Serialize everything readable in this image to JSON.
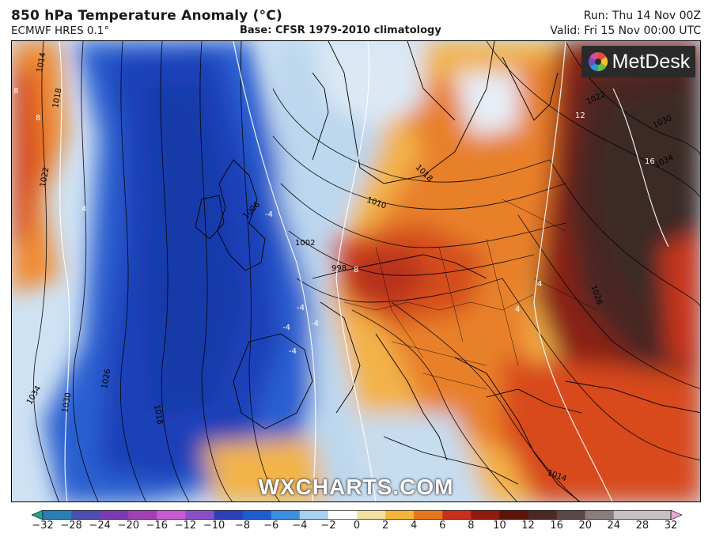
{
  "header": {
    "title": "850 hPa Temperature Anomaly (°C)",
    "model": "ECMWF HRES 0.1°",
    "base": "Base: CFSR 1979-2010 climatology",
    "run": "Run: Thu 14 Nov 00Z",
    "valid": "Valid: Fri 15 Nov 00:00 UTC"
  },
  "logo": {
    "text": "MetDesk"
  },
  "watermark": "WXCHARTS.COM",
  "map": {
    "pressure_labels": [
      "1014",
      "1018",
      "1022",
      "1026",
      "1030",
      "1034",
      "1002",
      "1006",
      "1010",
      "1018",
      "1022",
      "1030",
      "1034",
      "1026",
      "998",
      "1014",
      "1018"
    ],
    "anomaly_labels": [
      "8",
      "8",
      "4",
      "-4",
      "-4",
      "-4",
      "-4",
      "-4",
      "12",
      "16",
      "4",
      "4",
      "8"
    ]
  },
  "colorbar": {
    "ticks": [
      "−32",
      "−28",
      "−24",
      "−20",
      "−16",
      "−12",
      "−10",
      "−8",
      "−6",
      "−4",
      "−2",
      "0",
      "2",
      "4",
      "6",
      "8",
      "10",
      "12",
      "16",
      "20",
      "24",
      "28",
      "32"
    ],
    "colors": [
      "#1fa58f",
      "#2a7fb6",
      "#4d4fb0",
      "#7a3bb0",
      "#a23fb6",
      "#c85bd0",
      "#8a4fc7",
      "#2d3fb6",
      "#1e5ccf",
      "#3a8fe0",
      "#a8d0ef",
      "#ffffff",
      "#f2e0a0",
      "#f5b43a",
      "#e6761c",
      "#c8301a",
      "#8e1a10",
      "#5e1408",
      "#4a2a22",
      "#5a4845",
      "#8a7e7c",
      "#c8c0c0",
      "#e8a8d6"
    ]
  }
}
